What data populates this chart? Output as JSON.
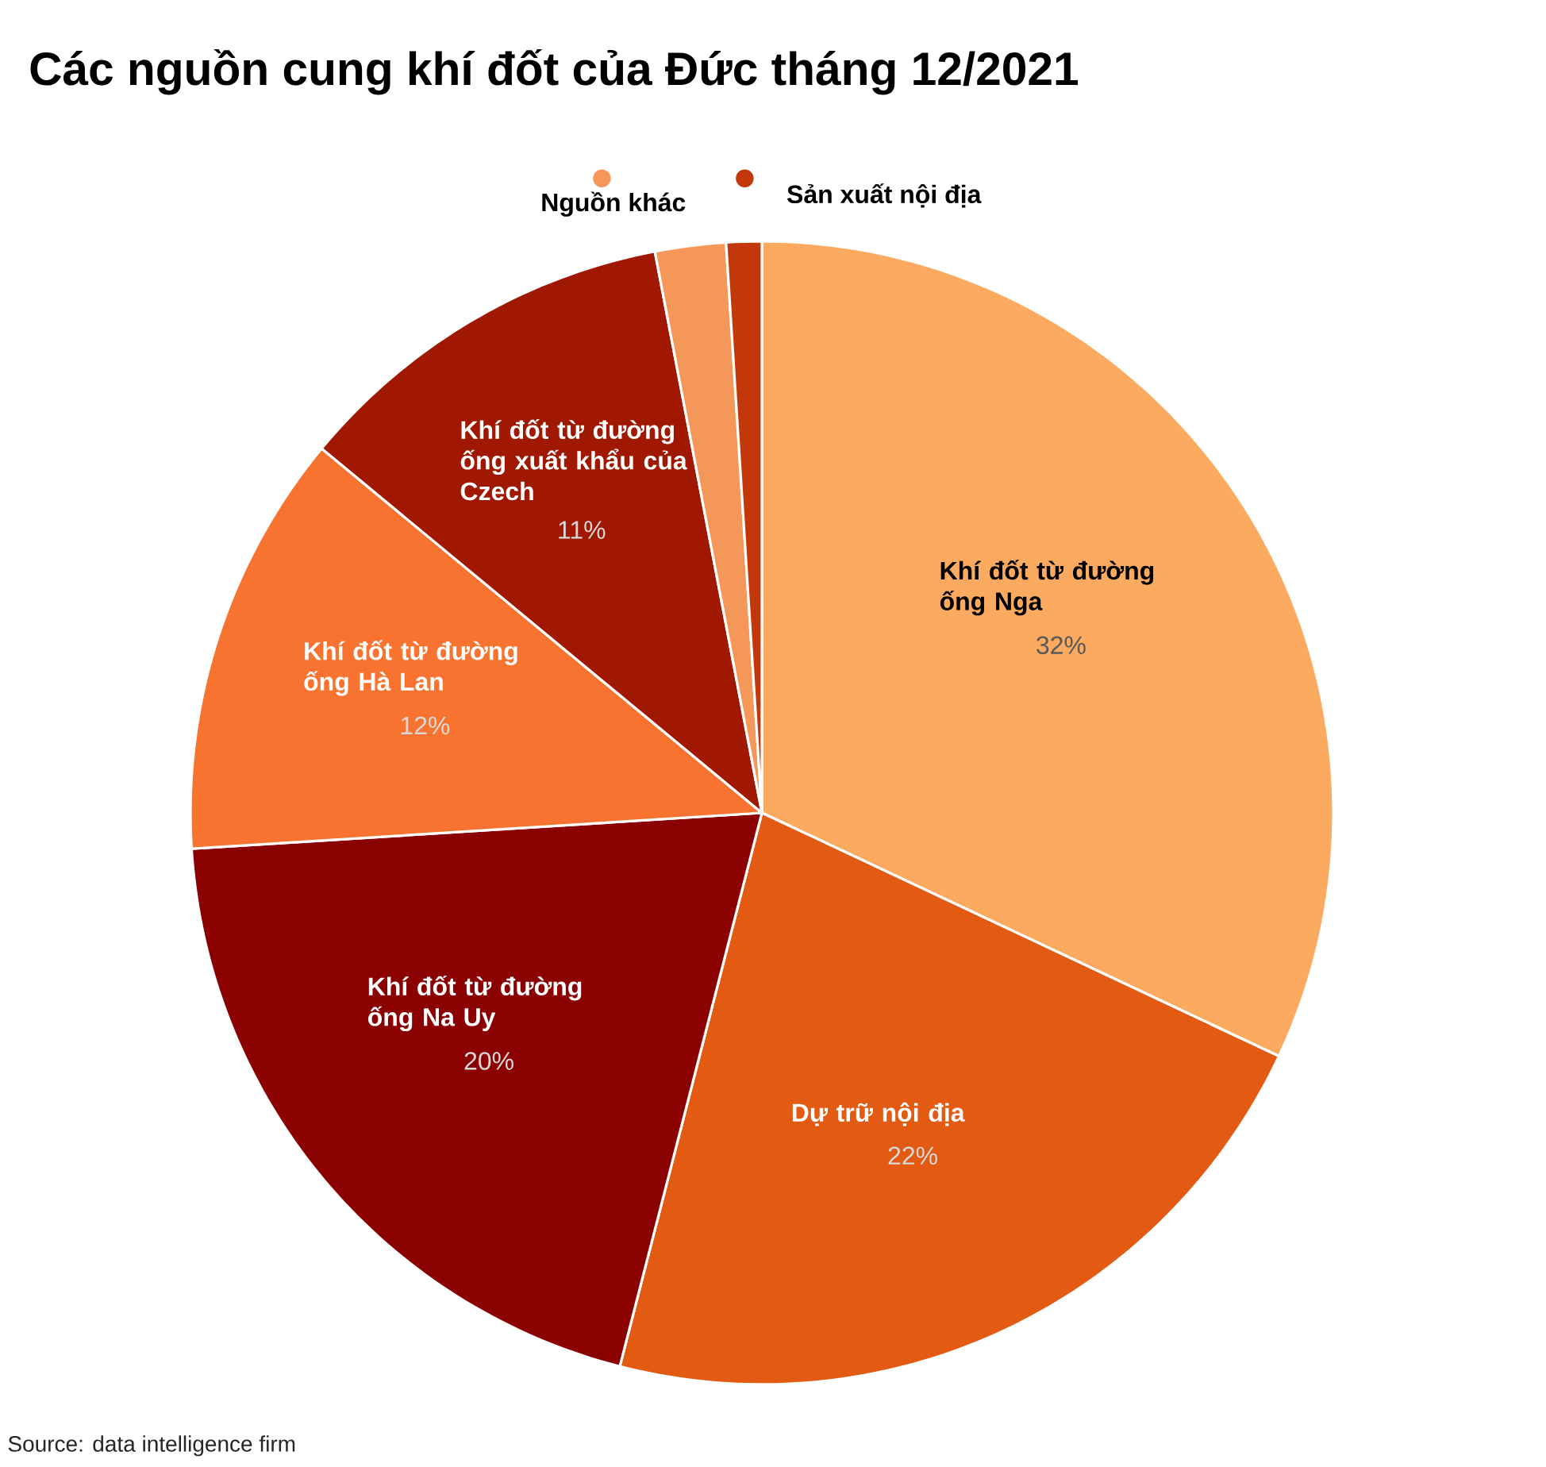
{
  "chart_data": {
    "type": "pie",
    "title": "Các nguồn cung khí đốt của Đức tháng 12/2021",
    "categories": [
      "Khí đốt từ đường ống Nga",
      "Dự trữ nội địa",
      "Khí đốt từ đường ống Na Uy",
      "Khí đốt từ đường ống Hà Lan",
      "Khí đốt từ đường ống xuất khẩu của Czech",
      "Nguồn khác",
      "Sản xuất nội địa"
    ],
    "values": [
      32,
      22,
      20,
      12,
      11,
      2,
      1
    ],
    "colors": [
      "#fbaa60",
      "#e35a12",
      "#8b0000",
      "#f8732f",
      "#a01800",
      "#f6975a",
      "#c2380a"
    ],
    "value_labels": [
      "32%",
      "22%",
      "20%",
      "12%",
      "11%",
      null,
      null
    ],
    "annotations": [
      "Source: data intelligence firm"
    ]
  }
}
